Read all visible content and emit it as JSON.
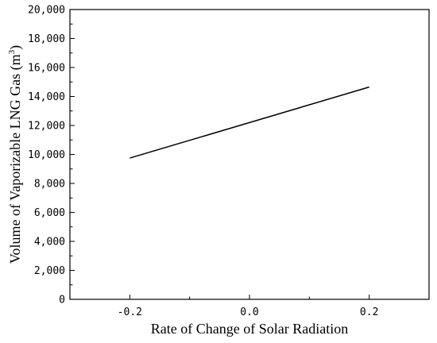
{
  "chart_data": {
    "type": "line",
    "x": [
      -0.2,
      0.2
    ],
    "series": [
      {
        "values": [
          9750,
          14650
        ],
        "color": "#000000"
      }
    ],
    "xlabel": "Rate of Change of Solar Radiation",
    "ylabel": "Volume of Vaporizable LNG Gas (m",
    "ylabel_superscript": "3",
    "ylabel_suffix": ")",
    "xlim": [
      -0.3,
      0.3
    ],
    "ylim": [
      0,
      20000
    ],
    "x_ticks": [
      -0.2,
      0.0,
      0.2
    ],
    "x_tick_labels": [
      "-0.2",
      "0.0",
      "0.2"
    ],
    "y_ticks": [
      0,
      2000,
      4000,
      6000,
      8000,
      10000,
      12000,
      14000,
      16000,
      18000,
      20000
    ],
    "y_tick_labels": [
      "0",
      "2,000",
      "4,000",
      "6,000",
      "8,000",
      "10,000",
      "12,000",
      "14,000",
      "16,000",
      "18,000",
      "20,000"
    ],
    "grid": false,
    "legend": false,
    "frame": "box"
  }
}
